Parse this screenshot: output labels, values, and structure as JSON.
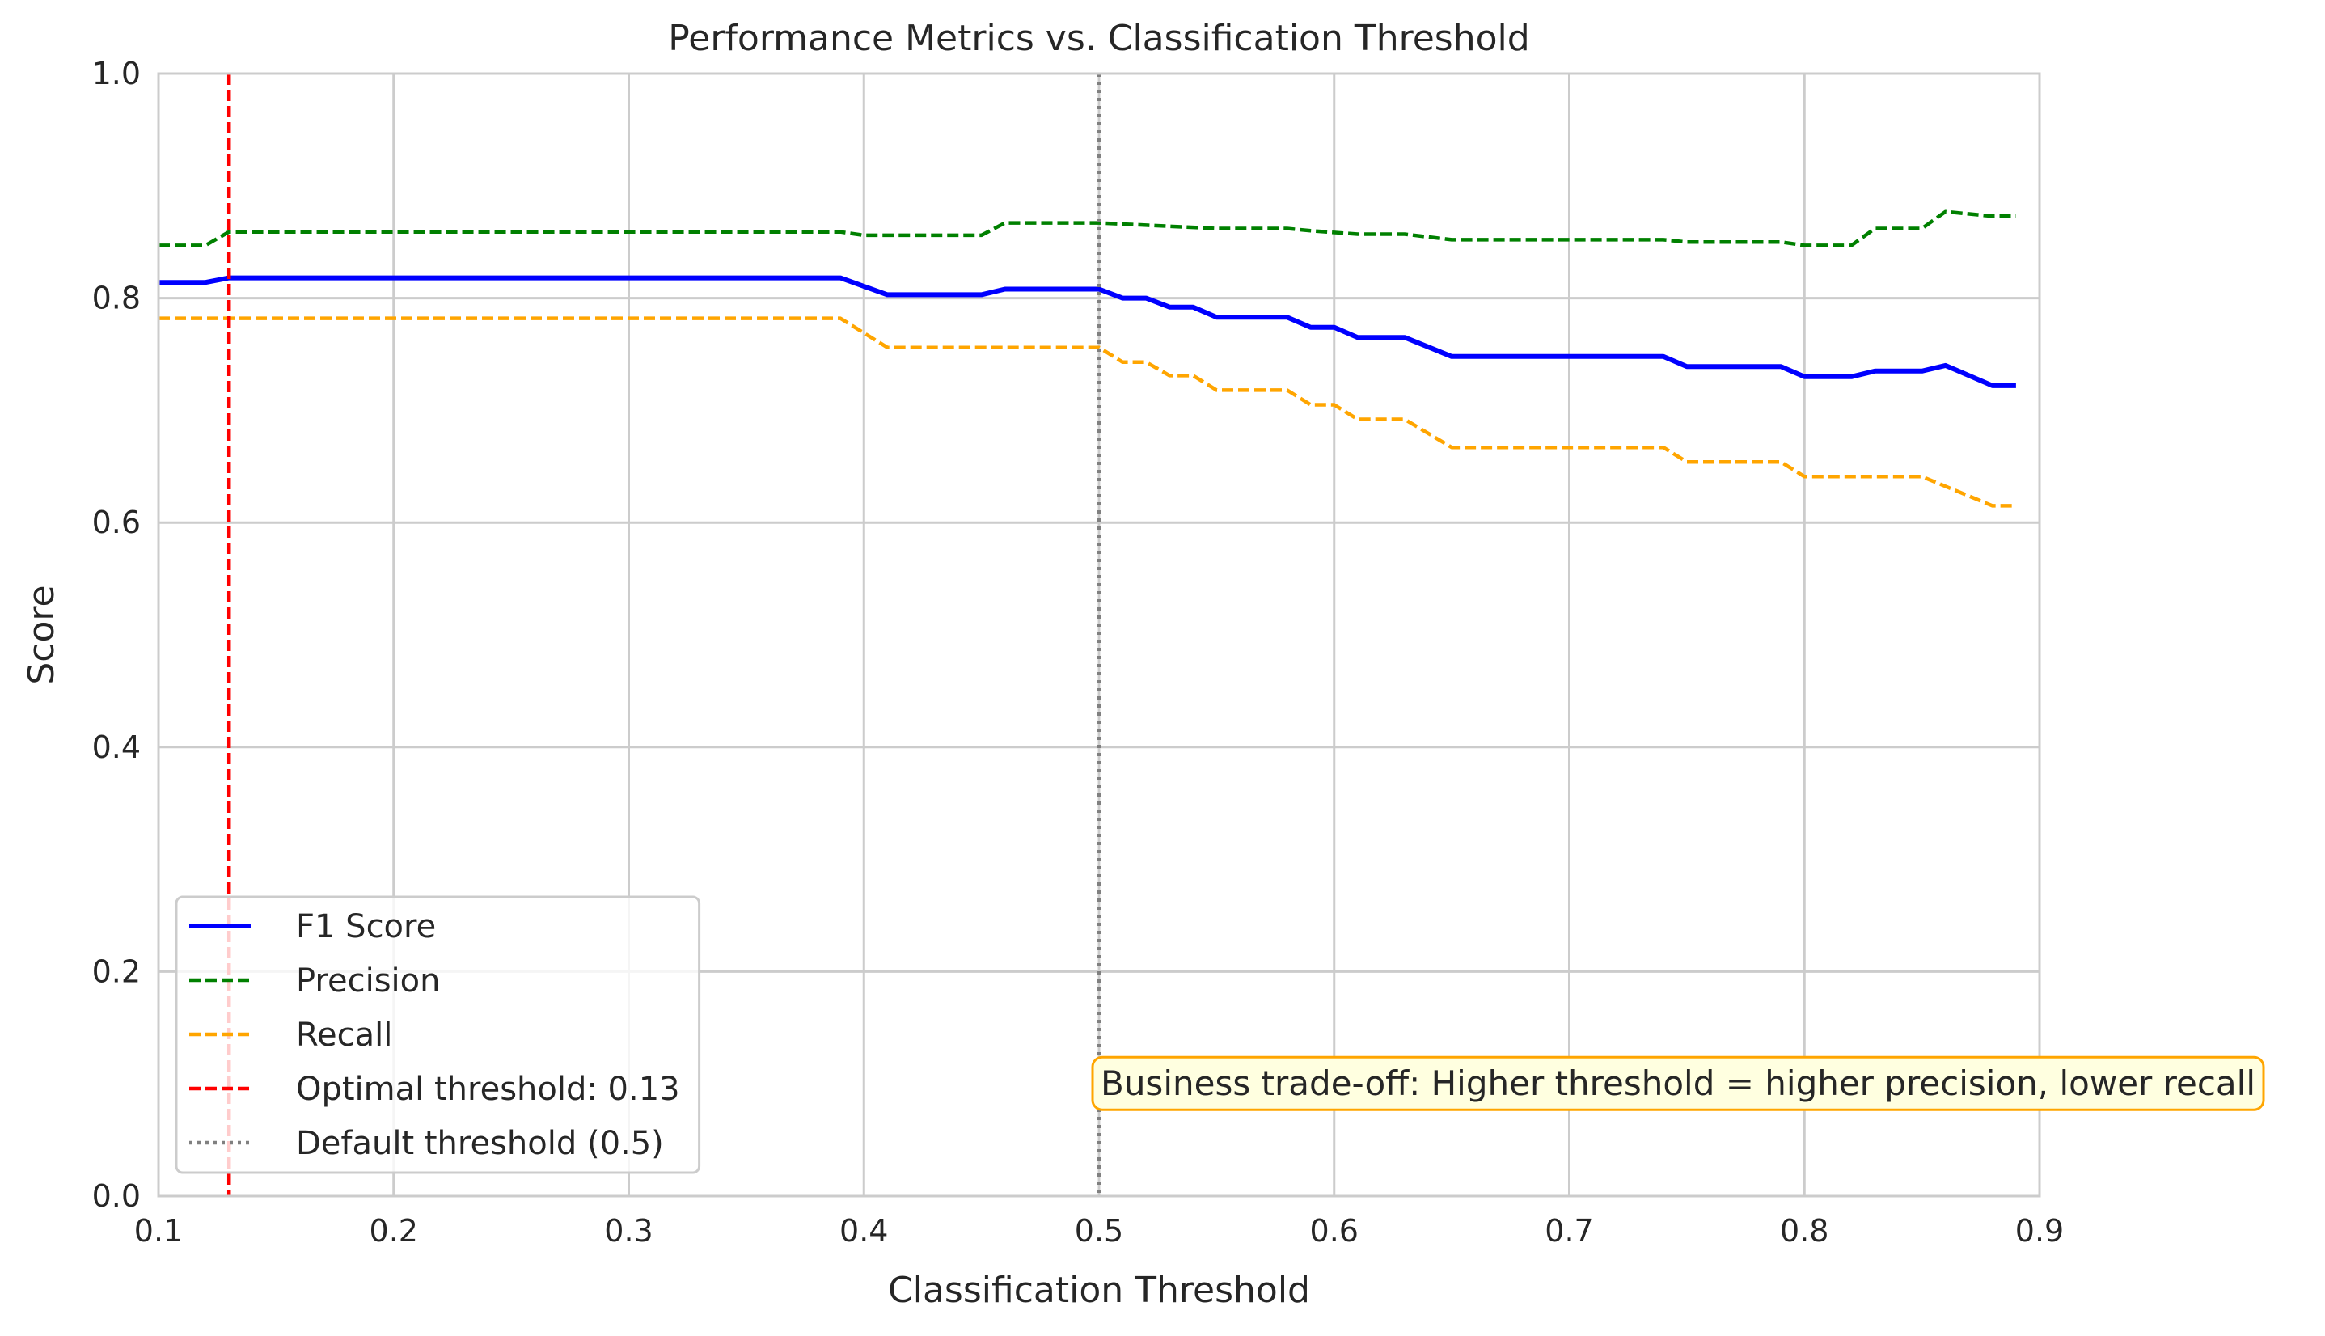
{
  "chart_data": {
    "type": "line",
    "title": "Performance Metrics vs. Classification Threshold",
    "xlabel": "Classification Threshold",
    "ylabel": "Score",
    "xlim": [
      0.1,
      0.9
    ],
    "ylim": [
      0.0,
      1.0
    ],
    "xticks": [
      "0.1",
      "0.2",
      "0.3",
      "0.4",
      "0.5",
      "0.6",
      "0.7",
      "0.8",
      "0.9"
    ],
    "yticks": [
      "0.0",
      "0.2",
      "0.4",
      "0.6",
      "0.8",
      "1.0"
    ],
    "grid": true,
    "legend_position": "lower-left",
    "series": [
      {
        "name": "F1 Score",
        "color": "#0000ff",
        "style": "solid",
        "points": [
          [
            0.1,
            0.814
          ],
          [
            0.12,
            0.814
          ],
          [
            0.13,
            0.818
          ],
          [
            0.39,
            0.818
          ],
          [
            0.41,
            0.803
          ],
          [
            0.45,
            0.803
          ],
          [
            0.46,
            0.808
          ],
          [
            0.5,
            0.808
          ],
          [
            0.51,
            0.8
          ],
          [
            0.52,
            0.8
          ],
          [
            0.53,
            0.792
          ],
          [
            0.54,
            0.792
          ],
          [
            0.55,
            0.783
          ],
          [
            0.58,
            0.783
          ],
          [
            0.59,
            0.774
          ],
          [
            0.6,
            0.774
          ],
          [
            0.61,
            0.765
          ],
          [
            0.63,
            0.765
          ],
          [
            0.65,
            0.748
          ],
          [
            0.74,
            0.748
          ],
          [
            0.75,
            0.739
          ],
          [
            0.79,
            0.739
          ],
          [
            0.8,
            0.73
          ],
          [
            0.82,
            0.73
          ],
          [
            0.83,
            0.735
          ],
          [
            0.85,
            0.735
          ],
          [
            0.86,
            0.74
          ],
          [
            0.88,
            0.722
          ],
          [
            0.89,
            0.722
          ]
        ]
      },
      {
        "name": "Precision",
        "color": "#008000",
        "style": "dashed",
        "points": [
          [
            0.1,
            0.847
          ],
          [
            0.12,
            0.847
          ],
          [
            0.13,
            0.859
          ],
          [
            0.39,
            0.859
          ],
          [
            0.4,
            0.856
          ],
          [
            0.45,
            0.856
          ],
          [
            0.46,
            0.867
          ],
          [
            0.5,
            0.867
          ],
          [
            0.51,
            0.866
          ],
          [
            0.52,
            0.865
          ],
          [
            0.55,
            0.862
          ],
          [
            0.58,
            0.862
          ],
          [
            0.59,
            0.86
          ],
          [
            0.61,
            0.857
          ],
          [
            0.63,
            0.857
          ],
          [
            0.65,
            0.852
          ],
          [
            0.74,
            0.852
          ],
          [
            0.75,
            0.85
          ],
          [
            0.79,
            0.85
          ],
          [
            0.8,
            0.847
          ],
          [
            0.82,
            0.847
          ],
          [
            0.83,
            0.862
          ],
          [
            0.85,
            0.862
          ],
          [
            0.86,
            0.877
          ],
          [
            0.88,
            0.873
          ],
          [
            0.89,
            0.873
          ]
        ]
      },
      {
        "name": "Recall",
        "color": "#ffa500",
        "style": "dashed",
        "points": [
          [
            0.1,
            0.782
          ],
          [
            0.39,
            0.782
          ],
          [
            0.41,
            0.756
          ],
          [
            0.5,
            0.756
          ],
          [
            0.51,
            0.743
          ],
          [
            0.52,
            0.743
          ],
          [
            0.53,
            0.731
          ],
          [
            0.54,
            0.731
          ],
          [
            0.55,
            0.718
          ],
          [
            0.58,
            0.718
          ],
          [
            0.59,
            0.705
          ],
          [
            0.6,
            0.705
          ],
          [
            0.61,
            0.692
          ],
          [
            0.63,
            0.692
          ],
          [
            0.65,
            0.667
          ],
          [
            0.74,
            0.667
          ],
          [
            0.75,
            0.654
          ],
          [
            0.79,
            0.654
          ],
          [
            0.8,
            0.641
          ],
          [
            0.85,
            0.641
          ],
          [
            0.88,
            0.615
          ],
          [
            0.89,
            0.615
          ]
        ]
      }
    ],
    "vlines": [
      {
        "name": "Optimal threshold: 0.13",
        "x": 0.13,
        "color": "#ff0000",
        "style": "dashed"
      },
      {
        "name": "Default threshold (0.5)",
        "x": 0.5,
        "color": "#808080",
        "style": "dotted"
      }
    ],
    "annotation": {
      "text": "Business trade-off: Higher threshold = higher precision, lower recall",
      "x": 0.5,
      "y": 0.1,
      "background": "#ffffe0",
      "border": "#ffa500"
    }
  }
}
